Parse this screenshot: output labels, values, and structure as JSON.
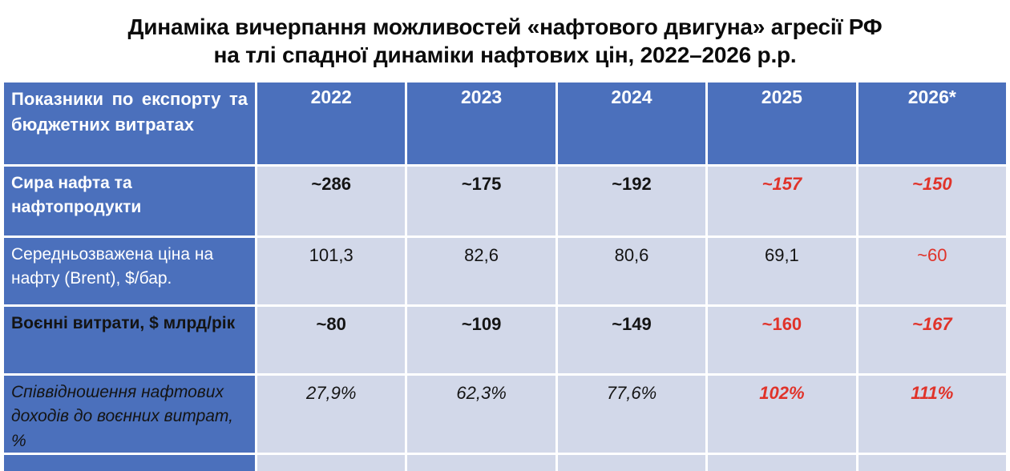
{
  "title": {
    "line1": "Динаміка вичерпання можливостей «нафтового двигуна» агресії РФ",
    "line2": "на тлі спадної динаміки нафтових цін, 2022–2026 р.р."
  },
  "chart_data": {
    "type": "table",
    "title": "Динаміка вичерпання можливостей «нафтового двигуна» агресії РФ на тлі спадної динаміки нафтових цін, 2022–2026 р.р.",
    "corner_header": "Показники по експорту та бюджетних витратах",
    "columns": [
      "2022",
      "2023",
      "2024",
      "2025",
      "2026*"
    ],
    "rows": [
      {
        "label": "Сира нафта та нафтопродукти",
        "values": [
          "~286",
          "~175",
          "~192",
          "~157",
          "~150"
        ]
      },
      {
        "label": "Середньозважена ціна на нафту (Brent), $/бар.",
        "values": [
          "101,3",
          "82,6",
          "80,6",
          "69,1",
          "~60"
        ]
      },
      {
        "label": "Воєнні витрати, $ млрд/рік",
        "values": [
          "~80",
          "~109",
          "~149",
          "~160",
          "~167"
        ]
      },
      {
        "label": "Співвідношення нафтових доходів до воєнних витрат, %",
        "values": [
          "27,9%",
          "62,3%",
          "77,6%",
          "102%",
          "111%"
        ]
      }
    ],
    "notes": "Values for 2025 and 2026* shown in red (forecast/estimates); 2026 column marked with asterisk"
  },
  "colors": {
    "header_blue": "#4b70bc",
    "cell_lavender": "#d2d8e9",
    "alert_red": "#e0332a",
    "text_black": "#141414",
    "text_white": "#ffffff"
  }
}
